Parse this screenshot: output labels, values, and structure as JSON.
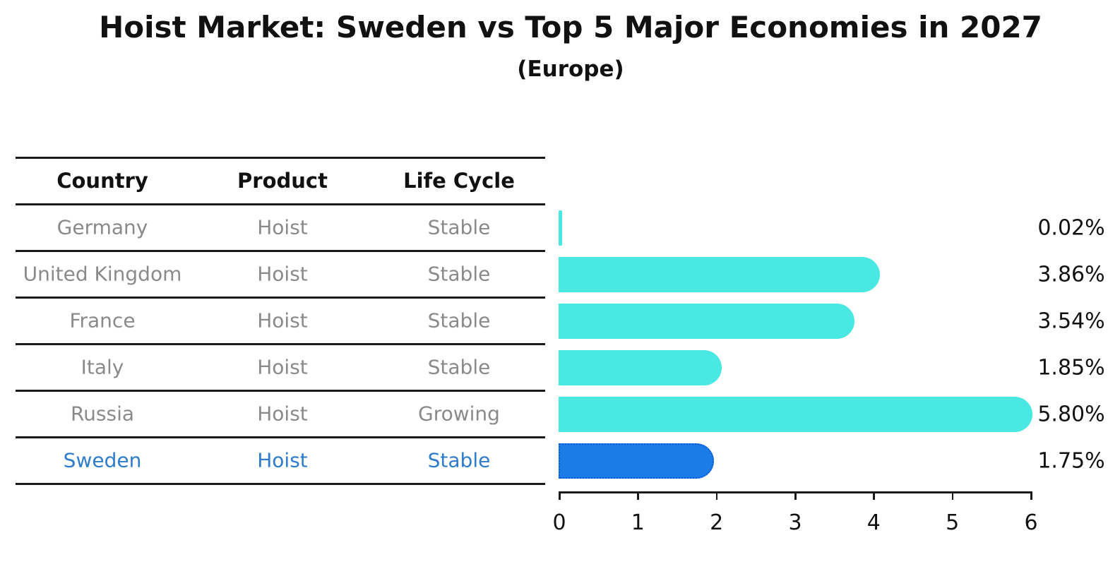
{
  "title": "Hoist Market: Sweden vs Top 5 Major Economies in 2027",
  "subtitle": "(Europe)",
  "table": {
    "columns": [
      "Country",
      "Product",
      "Life Cycle"
    ],
    "rows": [
      {
        "country": "Germany",
        "product": "Hoist",
        "life_cycle": "Stable",
        "highlight": false
      },
      {
        "country": "United Kingdom",
        "product": "Hoist",
        "life_cycle": "Stable",
        "highlight": false
      },
      {
        "country": "France",
        "product": "Hoist",
        "life_cycle": "Stable",
        "highlight": false
      },
      {
        "country": "Italy",
        "product": "Hoist",
        "life_cycle": "Stable",
        "highlight": false
      },
      {
        "country": "Russia",
        "product": "Hoist",
        "life_cycle": "Growing",
        "highlight": false
      },
      {
        "country": "Sweden",
        "product": "Hoist",
        "life_cycle": "Stable",
        "highlight": true
      }
    ]
  },
  "chart_data": {
    "type": "bar",
    "orientation": "horizontal",
    "title": "Hoist Market: Sweden vs Top 5 Major Economies in 2027",
    "subtitle": "(Europe)",
    "categories": [
      "Germany",
      "United Kingdom",
      "France",
      "Italy",
      "Russia",
      "Sweden"
    ],
    "values": [
      0.02,
      3.86,
      3.54,
      1.85,
      5.8,
      1.75
    ],
    "value_labels": [
      "0.02%",
      "3.86%",
      "3.54%",
      "1.85%",
      "5.80%",
      "1.75%"
    ],
    "xlim": [
      0,
      6
    ],
    "x_ticks": [
      0,
      1,
      2,
      3,
      4,
      5,
      6
    ],
    "grid": false,
    "legend": false,
    "highlight_index": 5
  },
  "colors": {
    "bar": "#4AE8E3",
    "highlight_bar": "#1B7CE8",
    "highlight_border": "#0E57D5",
    "row_text": "#8a8a8a",
    "highlight_text": "#2e7ccb",
    "text": "#111111",
    "background": "#ffffff"
  }
}
